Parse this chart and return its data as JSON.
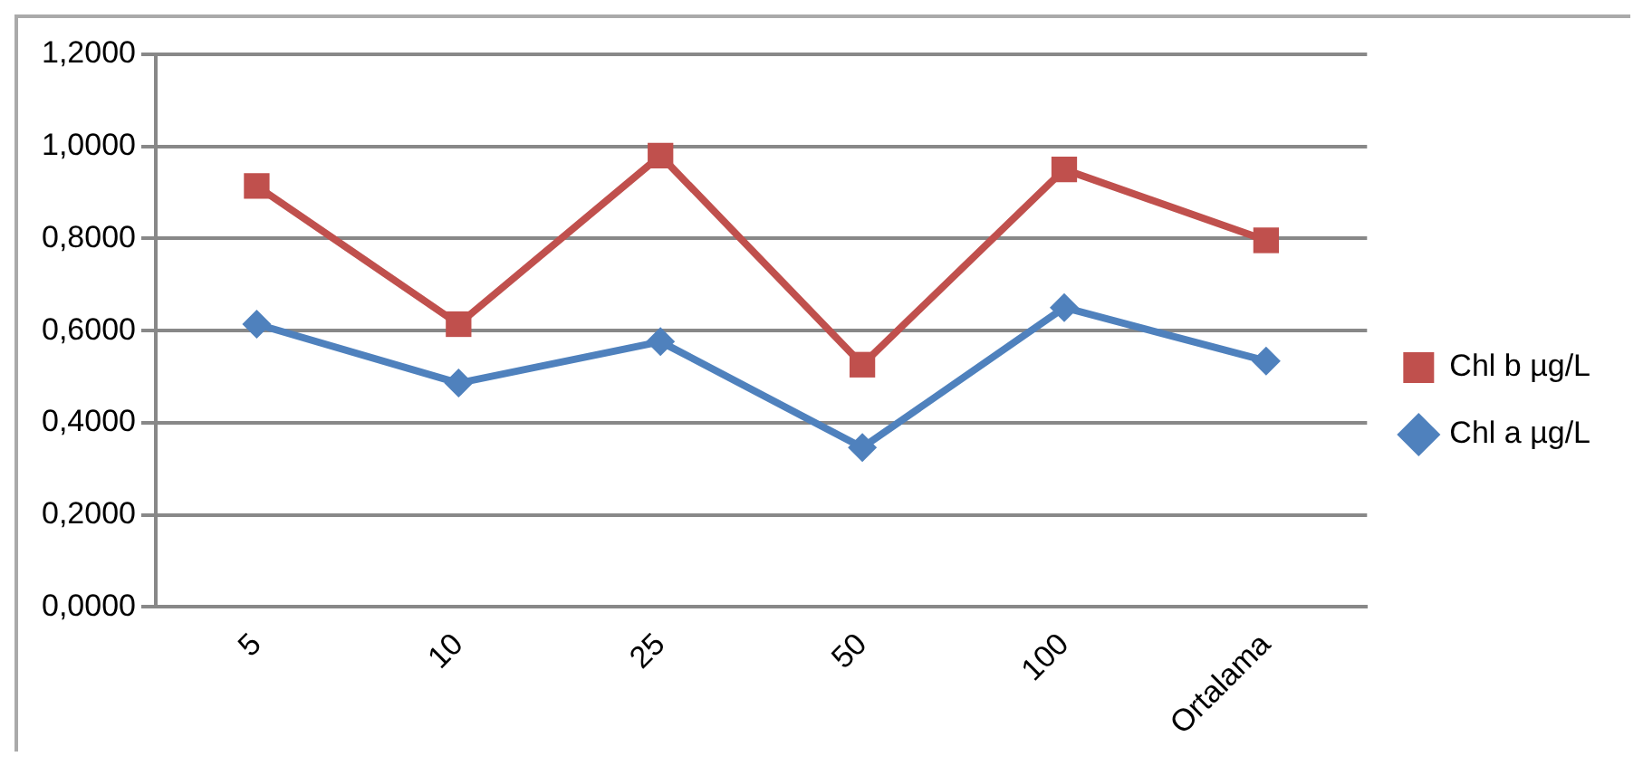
{
  "chart_data": {
    "type": "line",
    "categories": [
      "5",
      "10",
      "25",
      "50",
      "100",
      "Ortalama"
    ],
    "series": [
      {
        "name": "Chl b µg/L",
        "color": "#c0504d",
        "marker": "square",
        "values": [
          0.914,
          0.614,
          0.98,
          0.526,
          0.95,
          0.796
        ]
      },
      {
        "name": "Chl a µg/L",
        "color": "#4f81bd",
        "marker": "diamond",
        "values": [
          0.614,
          0.486,
          0.576,
          0.346,
          0.65,
          0.534
        ]
      }
    ],
    "ylim": [
      0,
      1.2
    ],
    "yticks": [
      {
        "value": 0,
        "label": "0,0000"
      },
      {
        "value": 0.2,
        "label": "0,2000"
      },
      {
        "value": 0.4,
        "label": "0,4000"
      },
      {
        "value": 0.6,
        "label": "0,6000"
      },
      {
        "value": 0.8,
        "label": "0,8000"
      },
      {
        "value": 1,
        "label": "1,0000"
      },
      {
        "value": 1.2,
        "label": "1,2000"
      }
    ],
    "grid": "y",
    "legend": "right",
    "line_style": "solid"
  }
}
